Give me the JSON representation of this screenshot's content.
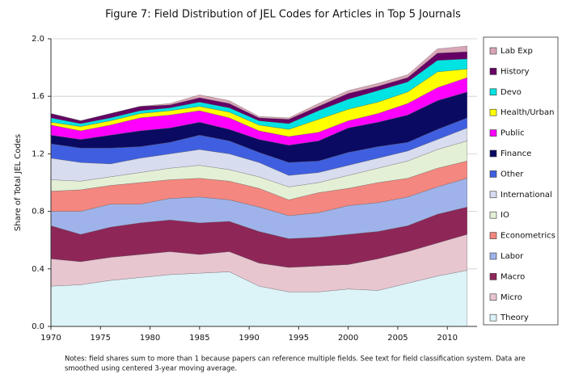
{
  "chart_data": {
    "type": "stacked-area",
    "title": "Figure 7: Field Distribution of JEL Codes for Articles in Top 5 Journals",
    "y_label": "Share of Total JEL Codes",
    "notes": [
      "Notes: field shares sum to more than 1 because papers can reference multiple fields.  See text for field classification system. Data are",
      "smoothed using centered 3-year moving average."
    ],
    "x": [
      1970,
      1973,
      1976,
      1979,
      1982,
      1985,
      1988,
      1991,
      1994,
      1997,
      2000,
      2003,
      2006,
      2009,
      2012
    ],
    "xlim": [
      1970,
      2013
    ],
    "xticks": [
      1970,
      1975,
      1980,
      1985,
      1990,
      1995,
      2000,
      2005,
      2010
    ],
    "ylim": [
      0,
      2
    ],
    "yticks": [
      {
        "value": 0,
        "label": "0.0"
      },
      0.4,
      0.8,
      1.2,
      1.6,
      {
        "value": 2,
        "label": "2.0"
      }
    ],
    "grid": true,
    "legend": "right",
    "series": [
      {
        "name": "Theory",
        "color": "#dcf3f8",
        "values": [
          0.28,
          0.29,
          0.32,
          0.34,
          0.36,
          0.37,
          0.38,
          0.28,
          0.24,
          0.24,
          0.26,
          0.25,
          0.3,
          0.35,
          0.39
        ]
      },
      {
        "name": "Micro",
        "color": "#e8c6d0",
        "values": [
          0.19,
          0.16,
          0.16,
          0.16,
          0.16,
          0.13,
          0.14,
          0.16,
          0.17,
          0.18,
          0.17,
          0.22,
          0.22,
          0.23,
          0.25
        ]
      },
      {
        "name": "Macro",
        "color": "#8e2658",
        "values": [
          0.23,
          0.19,
          0.21,
          0.22,
          0.22,
          0.22,
          0.21,
          0.22,
          0.2,
          0.2,
          0.21,
          0.19,
          0.18,
          0.2,
          0.19
        ]
      },
      {
        "name": "Labor",
        "color": "#9fb3ea",
        "values": [
          0.1,
          0.16,
          0.16,
          0.13,
          0.15,
          0.18,
          0.15,
          0.17,
          0.16,
          0.17,
          0.2,
          0.2,
          0.2,
          0.19,
          0.2
        ]
      },
      {
        "name": "Econometrics",
        "color": "#f4877f",
        "values": [
          0.14,
          0.15,
          0.13,
          0.15,
          0.13,
          0.13,
          0.13,
          0.13,
          0.11,
          0.14,
          0.12,
          0.14,
          0.13,
          0.13,
          0.12
        ]
      },
      {
        "name": "IO",
        "color": "#e3f0d6",
        "values": [
          0.08,
          0.06,
          0.06,
          0.07,
          0.08,
          0.09,
          0.08,
          0.08,
          0.09,
          0.07,
          0.09,
          0.1,
          0.12,
          0.13,
          0.14
        ]
      },
      {
        "name": "International",
        "color": "#d8dcef",
        "values": [
          0.15,
          0.13,
          0.09,
          0.1,
          0.1,
          0.11,
          0.11,
          0.1,
          0.08,
          0.07,
          0.07,
          0.07,
          0.07,
          0.07,
          0.09
        ]
      },
      {
        "name": "Other",
        "color": "#3f5fe0",
        "values": [
          0.1,
          0.1,
          0.11,
          0.08,
          0.08,
          0.1,
          0.09,
          0.07,
          0.09,
          0.08,
          0.09,
          0.08,
          0.06,
          0.07,
          0.07
        ]
      },
      {
        "name": "Finance",
        "color": "#0a0a62",
        "values": [
          0.06,
          0.06,
          0.09,
          0.11,
          0.1,
          0.09,
          0.08,
          0.09,
          0.12,
          0.14,
          0.17,
          0.17,
          0.19,
          0.2,
          0.18
        ]
      },
      {
        "name": "Public",
        "color": "#ff00ff",
        "values": [
          0.07,
          0.06,
          0.07,
          0.09,
          0.09,
          0.08,
          0.08,
          0.06,
          0.06,
          0.06,
          0.05,
          0.06,
          0.08,
          0.09,
          0.1
        ]
      },
      {
        "name": "Health/Urban",
        "color": "#ffff00",
        "values": [
          0.02,
          0.03,
          0.03,
          0.03,
          0.03,
          0.03,
          0.04,
          0.04,
          0.05,
          0.09,
          0.08,
          0.08,
          0.08,
          0.11,
          0.06
        ]
      },
      {
        "name": "Devo",
        "color": "#00e3e3",
        "values": [
          0.03,
          0.02,
          0.02,
          0.02,
          0.02,
          0.03,
          0.03,
          0.03,
          0.04,
          0.06,
          0.07,
          0.08,
          0.07,
          0.08,
          0.07
        ]
      },
      {
        "name": "History",
        "color": "#660066",
        "values": [
          0.03,
          0.02,
          0.03,
          0.03,
          0.02,
          0.03,
          0.03,
          0.02,
          0.03,
          0.03,
          0.04,
          0.03,
          0.03,
          0.05,
          0.05
        ]
      },
      {
        "name": "Lab Exp",
        "color": "#d8a6b6",
        "values": [
          0.0,
          0.0,
          0.0,
          0.0,
          0.01,
          0.02,
          0.02,
          0.01,
          0.01,
          0.02,
          0.02,
          0.02,
          0.02,
          0.03,
          0.04
        ]
      }
    ]
  }
}
